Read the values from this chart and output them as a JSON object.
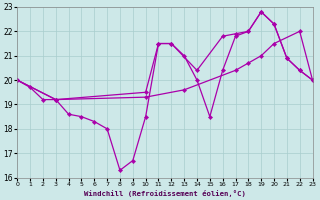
{
  "xlabel": "Windchill (Refroidissement éolien,°C)",
  "xlim": [
    0,
    23
  ],
  "ylim": [
    16,
    23
  ],
  "yticks": [
    16,
    17,
    18,
    19,
    20,
    21,
    22,
    23
  ],
  "xticks": [
    0,
    1,
    2,
    3,
    4,
    5,
    6,
    7,
    8,
    9,
    10,
    11,
    12,
    13,
    14,
    15,
    16,
    17,
    18,
    19,
    20,
    21,
    22,
    23
  ],
  "background_color": "#cde8e8",
  "grid_color": "#a8cece",
  "line_color": "#aa00aa",
  "line1_x": [
    0,
    1,
    2,
    3,
    4,
    5,
    6,
    7,
    8,
    9,
    10,
    11,
    12,
    13,
    14,
    15,
    16,
    17,
    18,
    19,
    20,
    21,
    22,
    23
  ],
  "line1_y": [
    20.0,
    19.7,
    19.2,
    19.2,
    18.6,
    18.5,
    18.3,
    18.0,
    16.3,
    16.7,
    18.5,
    21.5,
    21.5,
    21.0,
    20.0,
    18.5,
    20.4,
    21.8,
    22.0,
    22.8,
    22.3,
    20.9,
    20.4,
    20.0
  ],
  "line2_x": [
    0,
    3,
    10,
    13,
    17,
    18,
    19,
    20,
    22,
    23
  ],
  "line2_y": [
    20.0,
    19.2,
    19.3,
    19.6,
    20.4,
    20.7,
    21.0,
    21.5,
    22.0,
    20.0
  ],
  "line3_x": [
    0,
    3,
    10,
    11,
    12,
    14,
    16,
    17,
    18,
    19,
    20,
    21,
    22,
    23
  ],
  "line3_y": [
    20.0,
    19.2,
    19.5,
    21.5,
    21.5,
    20.4,
    21.8,
    21.9,
    22.0,
    22.8,
    22.3,
    20.9,
    20.4,
    20.0
  ]
}
